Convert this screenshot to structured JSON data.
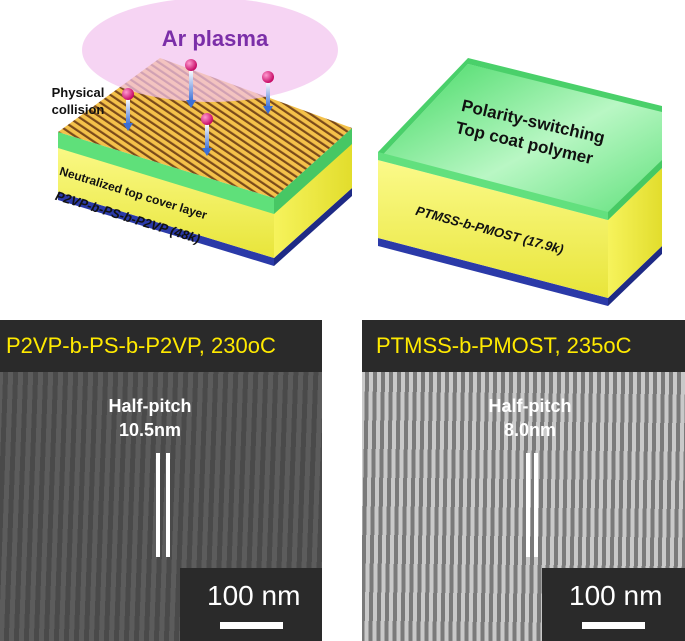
{
  "top_left": {
    "plasma_label": "Ar plasma",
    "collision_label": "Physical\ncollision",
    "cover_layer_label": "Neutralized top cover layer",
    "polymer_label": "P2VP-b-PS-b-P2VP (48k)",
    "plasma_color": "#f2c4ee",
    "plasma_text_color": "#7b2ea8"
  },
  "top_right": {
    "topcoat_label_line1": "Polarity-switching",
    "topcoat_label_line2": "Top coat polymer",
    "polymer_label": "PTMSS-b-PMOST (17.9k)",
    "topcoat_color": "#5fe07a"
  },
  "sem_left": {
    "title": "P2VP-b-PS-b-P2VP, 230oC",
    "half_pitch_label": "Half-pitch",
    "half_pitch_value": "10.5nm",
    "scale_bar_label": "100 nm"
  },
  "sem_right": {
    "title": "PTMSS-b-PMOST, 235oC",
    "half_pitch_label": "Half-pitch",
    "half_pitch_value": "8.0nm",
    "scale_bar_label": "100 nm"
  },
  "colors": {
    "title_yellow": "#ffea00",
    "substrate_blue": "#2b3aa8",
    "film_yellow": "#f3f05a"
  }
}
